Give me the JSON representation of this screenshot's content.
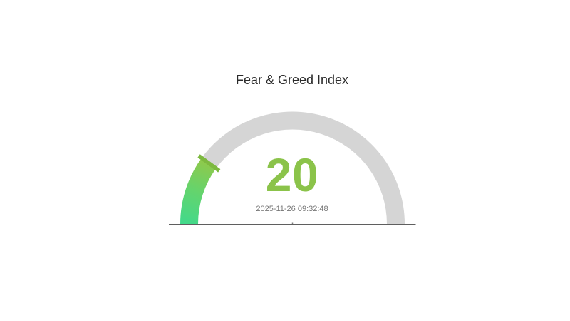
{
  "chart_data": {
    "type": "gauge",
    "title": "Fear & Greed Index",
    "value": 20,
    "min": 0,
    "max": 100,
    "arc_span_degrees": 180,
    "timestamp": "2025-11-26 09:32:48",
    "legend": false,
    "grid": false,
    "colors": {
      "background": "#ffffff",
      "track": "#d5d5d5",
      "progress_gradient": [
        "#43d98a",
        "#63d46e",
        "#8ec94c"
      ],
      "pointer_tick": "#7db93f",
      "value_text": "#8bc34a",
      "timestamp_text": "#767676",
      "title_text": "#2b2b2b",
      "baseline": "#5f5f5f"
    }
  }
}
